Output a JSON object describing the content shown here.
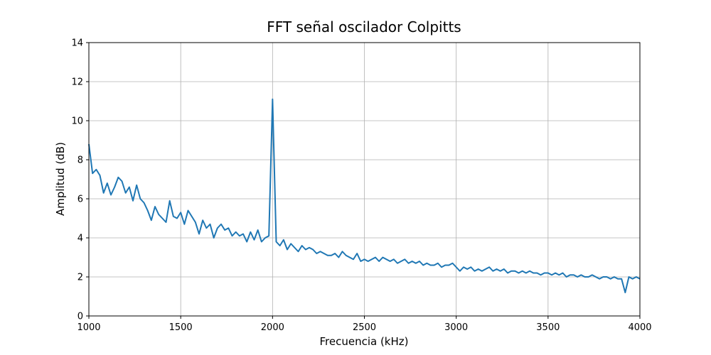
{
  "chart_data": {
    "type": "line",
    "title": "FFT señal oscilador Colpitts",
    "x_label": "Frecuencia (kHz)",
    "y_label": "Amplitud (dB)",
    "x": [
      1000,
      1020,
      1040,
      1060,
      1080,
      1100,
      1120,
      1140,
      1160,
      1180,
      1200,
      1220,
      1240,
      1260,
      1280,
      1300,
      1320,
      1340,
      1360,
      1380,
      1400,
      1420,
      1440,
      1460,
      1480,
      1500,
      1520,
      1540,
      1560,
      1580,
      1600,
      1620,
      1640,
      1660,
      1680,
      1700,
      1720,
      1740,
      1760,
      1780,
      1800,
      1820,
      1840,
      1860,
      1880,
      1900,
      1920,
      1940,
      1960,
      1980,
      2000,
      2020,
      2040,
      2060,
      2080,
      2100,
      2120,
      2140,
      2160,
      2180,
      2200,
      2220,
      2240,
      2260,
      2280,
      2300,
      2320,
      2340,
      2360,
      2380,
      2400,
      2420,
      2440,
      2460,
      2480,
      2500,
      2520,
      2540,
      2560,
      2580,
      2600,
      2620,
      2640,
      2660,
      2680,
      2700,
      2720,
      2740,
      2760,
      2780,
      2800,
      2820,
      2840,
      2860,
      2880,
      2900,
      2920,
      2940,
      2960,
      2980,
      3000,
      3020,
      3040,
      3060,
      3080,
      3100,
      3120,
      3140,
      3160,
      3180,
      3200,
      3220,
      3240,
      3260,
      3280,
      3300,
      3320,
      3340,
      3360,
      3380,
      3400,
      3420,
      3440,
      3460,
      3480,
      3500,
      3520,
      3540,
      3560,
      3580,
      3600,
      3620,
      3640,
      3660,
      3680,
      3700,
      3720,
      3740,
      3760,
      3780,
      3800,
      3820,
      3840,
      3860,
      3880,
      3900,
      3920,
      3940,
      3960,
      3980,
      4000
    ],
    "series": [
      {
        "name": "FFT",
        "color": "#1f77b4",
        "values": [
          8.8,
          7.3,
          7.5,
          7.2,
          6.3,
          6.8,
          6.2,
          6.6,
          7.1,
          6.9,
          6.3,
          6.6,
          5.9,
          6.7,
          6.0,
          5.8,
          5.4,
          4.9,
          5.6,
          5.2,
          5.0,
          4.8,
          5.9,
          5.1,
          5.0,
          5.3,
          4.7,
          5.4,
          5.1,
          4.8,
          4.2,
          4.9,
          4.5,
          4.7,
          4.0,
          4.5,
          4.7,
          4.4,
          4.5,
          4.1,
          4.3,
          4.1,
          4.2,
          3.8,
          4.3,
          3.9,
          4.4,
          3.8,
          4.0,
          4.1,
          11.1,
          3.8,
          3.6,
          3.9,
          3.4,
          3.7,
          3.5,
          3.3,
          3.6,
          3.4,
          3.5,
          3.4,
          3.2,
          3.3,
          3.2,
          3.1,
          3.1,
          3.2,
          3.0,
          3.3,
          3.1,
          3.0,
          2.9,
          3.2,
          2.8,
          2.9,
          2.8,
          2.9,
          3.0,
          2.8,
          3.0,
          2.9,
          2.8,
          2.9,
          2.7,
          2.8,
          2.9,
          2.7,
          2.8,
          2.7,
          2.8,
          2.6,
          2.7,
          2.6,
          2.6,
          2.7,
          2.5,
          2.6,
          2.6,
          2.7,
          2.5,
          2.3,
          2.5,
          2.4,
          2.5,
          2.3,
          2.4,
          2.3,
          2.4,
          2.5,
          2.3,
          2.4,
          2.3,
          2.4,
          2.2,
          2.3,
          2.3,
          2.2,
          2.3,
          2.2,
          2.3,
          2.2,
          2.2,
          2.1,
          2.2,
          2.2,
          2.1,
          2.2,
          2.1,
          2.2,
          2.0,
          2.1,
          2.1,
          2.0,
          2.1,
          2.0,
          2.0,
          2.1,
          2.0,
          1.9,
          2.0,
          2.0,
          1.9,
          2.0,
          1.9,
          1.9,
          1.2,
          2.0,
          1.9,
          2.0,
          1.9
        ]
      }
    ],
    "xlim": [
      1000,
      4000
    ],
    "xticks": [
      1000,
      1500,
      2000,
      2500,
      3000,
      3500,
      4000
    ],
    "ylim": [
      0,
      14
    ],
    "yticks": [
      0,
      2,
      4,
      6,
      8,
      10,
      12,
      14
    ],
    "grid": true
  }
}
